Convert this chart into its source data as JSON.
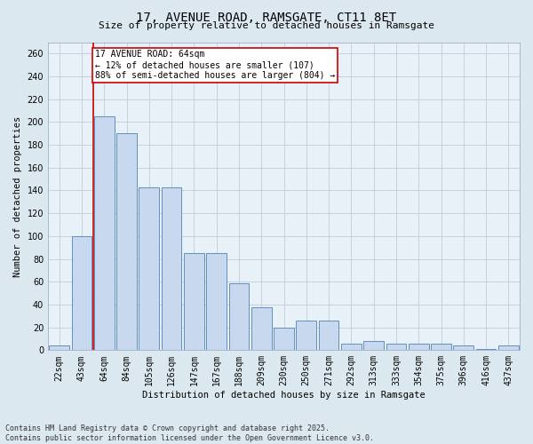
{
  "title": "17, AVENUE ROAD, RAMSGATE, CT11 8ET",
  "subtitle": "Size of property relative to detached houses in Ramsgate",
  "xlabel": "Distribution of detached houses by size in Ramsgate",
  "ylabel": "Number of detached properties",
  "categories": [
    "22sqm",
    "43sqm",
    "64sqm",
    "84sqm",
    "105sqm",
    "126sqm",
    "147sqm",
    "167sqm",
    "188sqm",
    "209sqm",
    "230sqm",
    "250sqm",
    "271sqm",
    "292sqm",
    "313sqm",
    "333sqm",
    "354sqm",
    "375sqm",
    "396sqm",
    "416sqm",
    "437sqm"
  ],
  "values": [
    4,
    100,
    205,
    190,
    143,
    143,
    85,
    85,
    59,
    38,
    20,
    26,
    26,
    6,
    8,
    6,
    6,
    6,
    4,
    1,
    4
  ],
  "bar_color": "#c8d8ee",
  "bar_edge_color": "#6090c0",
  "highlight_index": 2,
  "highlight_line_color": "#cc0000",
  "annotation_text": "17 AVENUE ROAD: 64sqm\n← 12% of detached houses are smaller (107)\n88% of semi-detached houses are larger (804) →",
  "annotation_box_color": "#cc0000",
  "ylim": [
    0,
    270
  ],
  "yticks": [
    0,
    20,
    40,
    60,
    80,
    100,
    120,
    140,
    160,
    180,
    200,
    220,
    240,
    260
  ],
  "grid_color": "#c0ccd8",
  "footer_line1": "Contains HM Land Registry data © Crown copyright and database right 2025.",
  "footer_line2": "Contains public sector information licensed under the Open Government Licence v3.0.",
  "background_color": "#dce8f0",
  "plot_background_color": "#e8f0f8",
  "title_fontsize": 10,
  "subtitle_fontsize": 8,
  "ylabel_fontsize": 7.5,
  "xlabel_fontsize": 7.5,
  "tick_fontsize": 7,
  "footer_fontsize": 6
}
